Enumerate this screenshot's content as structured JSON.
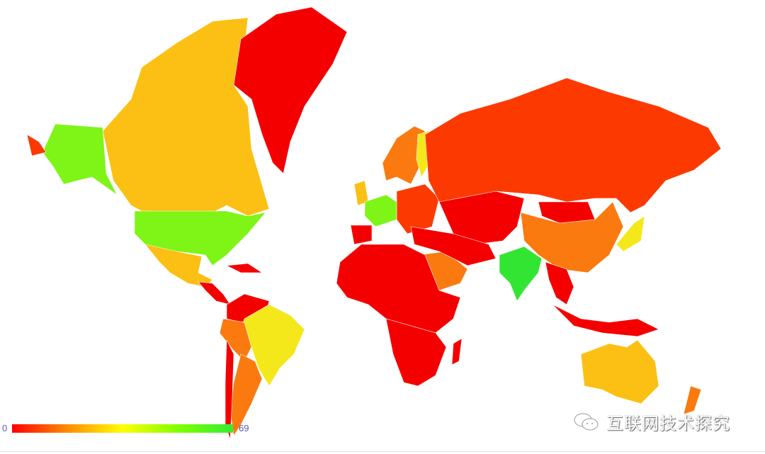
{
  "legend": {
    "min_label": "0",
    "max_label": "69",
    "min": 0,
    "max": 69,
    "gradient": [
      "#ff0000",
      "#ff8c00",
      "#ffff00",
      "#80ff00",
      "#33ee33"
    ]
  },
  "watermark": {
    "text": "互联网技术探究",
    "icon": "wechat-icon"
  },
  "colors": {
    "red": "#f50000",
    "red_orange": "#fc3a00",
    "orange": "#fa7a10",
    "amber": "#fbc013",
    "yellow": "#f5e81a",
    "lime": "#7ef516",
    "green": "#33e533"
  }
}
